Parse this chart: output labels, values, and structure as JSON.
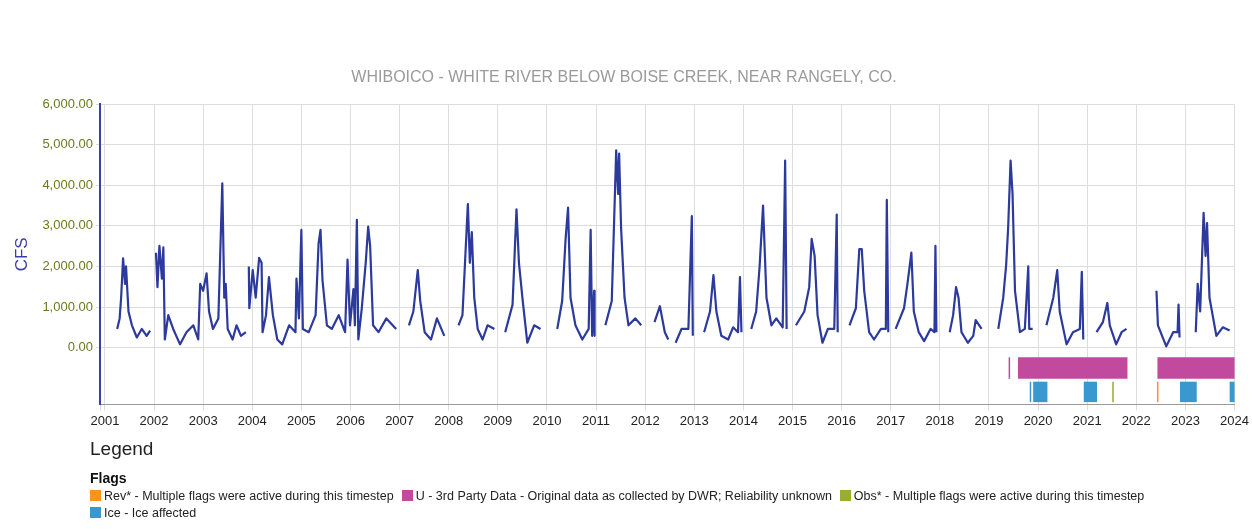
{
  "chart_data": {
    "type": "line",
    "title": "WHIBOICO - WHITE RIVER BELOW BOISE CREEK, NEAR RANGELY, CO.",
    "ylabel": "CFS",
    "color": "#2b3a9c",
    "x": [
      2001.25,
      2001.3,
      2001.33,
      2001.37,
      2001.41,
      2001.43,
      2001.48,
      2001.55,
      2001.65,
      2001.75,
      2001.85,
      2001.92,
      2001.98,
      2002.04,
      2002.07,
      2002.11,
      2002.16,
      2002.19,
      2002.22,
      2002.29,
      2002.39,
      2002.53,
      2002.66,
      2002.8,
      2002.9,
      2002.94,
      2003.0,
      2003.07,
      2003.12,
      2003.2,
      2003.31,
      2003.39,
      2003.43,
      2003.46,
      2003.5,
      2003.6,
      2003.68,
      2003.77,
      2003.87,
      2003.9,
      2003.93,
      2003.94,
      2004.01,
      2004.07,
      2004.14,
      2004.19,
      2004.21,
      2004.28,
      2004.34,
      2004.42,
      2004.51,
      2004.61,
      2004.75,
      2004.88,
      2004.9,
      2004.95,
      2005.0,
      2005.03,
      2005.15,
      2005.29,
      2005.35,
      2005.39,
      2005.43,
      2005.52,
      2005.62,
      2005.76,
      2005.89,
      2005.94,
      2005.99,
      2006.06,
      2006.09,
      2006.13,
      2006.16,
      2006.23,
      2006.31,
      2006.36,
      2006.4,
      2006.46,
      2006.57,
      2006.73,
      2006.93,
      2007.05,
      2007.19,
      2007.28,
      2007.37,
      2007.42,
      2007.51,
      2007.64,
      2007.76,
      2007.91,
      2008.05,
      2008.2,
      2008.28,
      2008.39,
      2008.43,
      2008.47,
      2008.52,
      2008.59,
      2008.69,
      2008.79,
      2008.93,
      2009.05,
      2009.15,
      2009.3,
      2009.38,
      2009.43,
      2009.5,
      2009.6,
      2009.74,
      2009.87,
      2010.05,
      2010.21,
      2010.31,
      2010.38,
      2010.43,
      2010.48,
      2010.58,
      2010.72,
      2010.85,
      2010.89,
      2010.92,
      2010.96,
      2010.97,
      2011.08,
      2011.19,
      2011.32,
      2011.41,
      2011.45,
      2011.47,
      2011.51,
      2011.58,
      2011.66,
      2011.8,
      2011.92,
      2012.05,
      2012.19,
      2012.3,
      2012.4,
      2012.47,
      2012.55,
      2012.62,
      2012.74,
      2012.88,
      2012.95,
      2012.97,
      2013.1,
      2013.2,
      2013.32,
      2013.39,
      2013.45,
      2013.55,
      2013.69,
      2013.79,
      2013.89,
      2013.93,
      2013.96,
      2014.06,
      2014.16,
      2014.26,
      2014.33,
      2014.4,
      2014.47,
      2014.57,
      2014.67,
      2014.8,
      2014.85,
      2014.88,
      2014.97,
      2015.07,
      2015.24,
      2015.34,
      2015.39,
      2015.45,
      2015.51,
      2015.61,
      2015.72,
      2015.85,
      2015.9,
      2015.92,
      2016.05,
      2016.16,
      2016.29,
      2016.36,
      2016.41,
      2016.46,
      2016.56,
      2016.66,
      2016.8,
      2016.9,
      2016.92,
      2016.95,
      2017.02,
      2017.1,
      2017.27,
      2017.34,
      2017.42,
      2017.47,
      2017.57,
      2017.68,
      2017.81,
      2017.89,
      2017.91,
      2017.93,
      2018.05,
      2018.2,
      2018.27,
      2018.33,
      2018.38,
      2018.44,
      2018.57,
      2018.68,
      2018.73,
      2018.85,
      2019.0,
      2019.19,
      2019.29,
      2019.35,
      2019.39,
      2019.44,
      2019.48,
      2019.53,
      2019.63,
      2019.73,
      2019.8,
      2019.82,
      2019.89,
      2020.0,
      2020.17,
      2020.31,
      2020.39,
      2020.44,
      2020.58,
      2020.71,
      2020.85,
      2020.89,
      2020.92,
      2021.05,
      2021.19,
      2021.32,
      2021.41,
      2021.46,
      2021.59,
      2021.7,
      2021.8,
      2022.1,
      2022.41,
      2022.44,
      2022.61,
      2022.75,
      2022.84,
      2022.86,
      2022.88,
      2023.05,
      2023.21,
      2023.25,
      2023.3,
      2023.37,
      2023.41,
      2023.44,
      2023.49,
      2023.63,
      2023.76,
      2023.9
    ],
    "values": [
      460,
      720,
      1230,
      2200,
      1570,
      2000,
      890,
      550,
      250,
      460,
      290,
      420,
      null,
      2340,
      1490,
      2510,
      1700,
      2470,
      200,
      800,
      460,
      80,
      380,
      550,
      200,
      1570,
      1400,
      1830,
      890,
      460,
      720,
      4050,
      1230,
      1570,
      460,
      200,
      550,
      290,
      380,
      null,
      2000,
      970,
      1910,
      1230,
      2210,
      2090,
      380,
      800,
      1740,
      800,
      200,
      80,
      550,
      380,
      1700,
      720,
      2900,
      460,
      380,
      800,
      2560,
      2900,
      1660,
      550,
      460,
      800,
      380,
      2170,
      550,
      1440,
      550,
      3150,
      200,
      970,
      2090,
      2980,
      2510,
      550,
      380,
      720,
      460,
      null,
      550,
      890,
      1910,
      1150,
      380,
      200,
      720,
      290,
      null,
      550,
      800,
      3540,
      2090,
      2850,
      1230,
      460,
      200,
      550,
      460,
      null,
      380,
      1060,
      3410,
      2090,
      1230,
      120,
      550,
      460,
      null,
      460,
      1150,
      2680,
      3450,
      1230,
      550,
      200,
      460,
      2900,
      290,
      1400,
      290,
      null,
      550,
      1150,
      4860,
      3790,
      4780,
      2940,
      1230,
      550,
      720,
      550,
      null,
      630,
      1020,
      380,
      200,
      null,
      120,
      460,
      460,
      3240,
      290,
      null,
      380,
      890,
      1790,
      890,
      290,
      200,
      500,
      380,
      1740,
      380,
      null,
      460,
      890,
      2000,
      3500,
      1230,
      550,
      720,
      500,
      4610,
      460,
      null,
      550,
      890,
      1490,
      2680,
      2260,
      800,
      120,
      460,
      460,
      3280,
      380,
      null,
      550,
      970,
      2430,
      2430,
      1400,
      380,
      200,
      460,
      460,
      3640,
      380,
      null,
      460,
      970,
      1570,
      2340,
      890,
      380,
      160,
      460,
      380,
      2510,
      380,
      null,
      380,
      800,
      1490,
      1230,
      380,
      120,
      290,
      680,
      460,
      null,
      460,
      1230,
      2040,
      2940,
      4610,
      3790,
      1400,
      380,
      460,
      2000,
      460,
      460,
      null,
      550,
      1230,
      1910,
      890,
      80,
      380,
      460,
      1870,
      200,
      null,
      380,
      630,
      1100,
      550,
      80,
      380,
      460,
      null,
      1400,
      550,
      30,
      380,
      380,
      1060,
      250,
      null,
      380,
      1570,
      890,
      3320,
      2260,
      3070,
      1230,
      290,
      500,
      420
    ],
    "xlim": [
      2000.9,
      2024
    ],
    "xticks": [
      {
        "value": 2000.9,
        "label": null
      },
      2001,
      2002,
      2003,
      2004,
      2005,
      2006,
      2007,
      2008,
      2009,
      2010,
      2011,
      2012,
      2013,
      2014,
      2015,
      2016,
      2017,
      2018,
      2019,
      2020,
      2021,
      2022,
      2023,
      2024
    ],
    "ylim": [
      -1400,
      6000
    ],
    "yticks": [
      {
        "value": 0,
        "label": "0.00"
      },
      {
        "value": 1000,
        "label": "1,000.00"
      },
      {
        "value": 2000,
        "label": "2,000.00"
      },
      {
        "value": 3000,
        "label": "3,000.00"
      },
      {
        "value": 4000,
        "label": "4,000.00"
      },
      {
        "value": 5000,
        "label": "5,000.00"
      },
      {
        "value": 6000,
        "label": "6,000.00"
      }
    ],
    "grid": true,
    "bands": [
      {
        "axis": "x",
        "from": 2022.42,
        "to": 2022.44,
        "label": "Rev* - Multiple flags were active during this timestep",
        "color": "#f7941d"
      },
      {
        "axis": "x",
        "from": 2019.4,
        "to": 2019.42,
        "label": "U - 3rd Party Data - Original data as collected by DWR; Reliability unknown",
        "color": "#c24a9e"
      },
      {
        "axis": "x",
        "from": 2019.59,
        "to": 2021.82,
        "color": "#c24a9e"
      },
      {
        "axis": "x",
        "from": 2022.43,
        "to": 2024.0,
        "color": "#c24a9e"
      },
      {
        "axis": "x",
        "from": 2021.51,
        "to": 2021.53,
        "label": "Obs* - Multiple flags were active during this timestep",
        "color": "#9aad2e"
      },
      {
        "axis": "x",
        "from": 2019.83,
        "to": 2019.85,
        "label": "Ice - Ice affected",
        "color": "#3a98d1"
      },
      {
        "axis": "x",
        "from": 2019.9,
        "to": 2020.19,
        "color": "#3a98d1"
      },
      {
        "axis": "x",
        "from": 2020.93,
        "to": 2021.2,
        "color": "#3a98d1"
      },
      {
        "axis": "x",
        "from": 2022.89,
        "to": 2023.23,
        "color": "#3a98d1"
      },
      {
        "axis": "x",
        "from": 2023.9,
        "to": 2024.0,
        "color": "#3a98d1"
      }
    ],
    "legend": "bottom",
    "legend_title": "Flags",
    "annotations": [
      "Legend"
    ]
  }
}
